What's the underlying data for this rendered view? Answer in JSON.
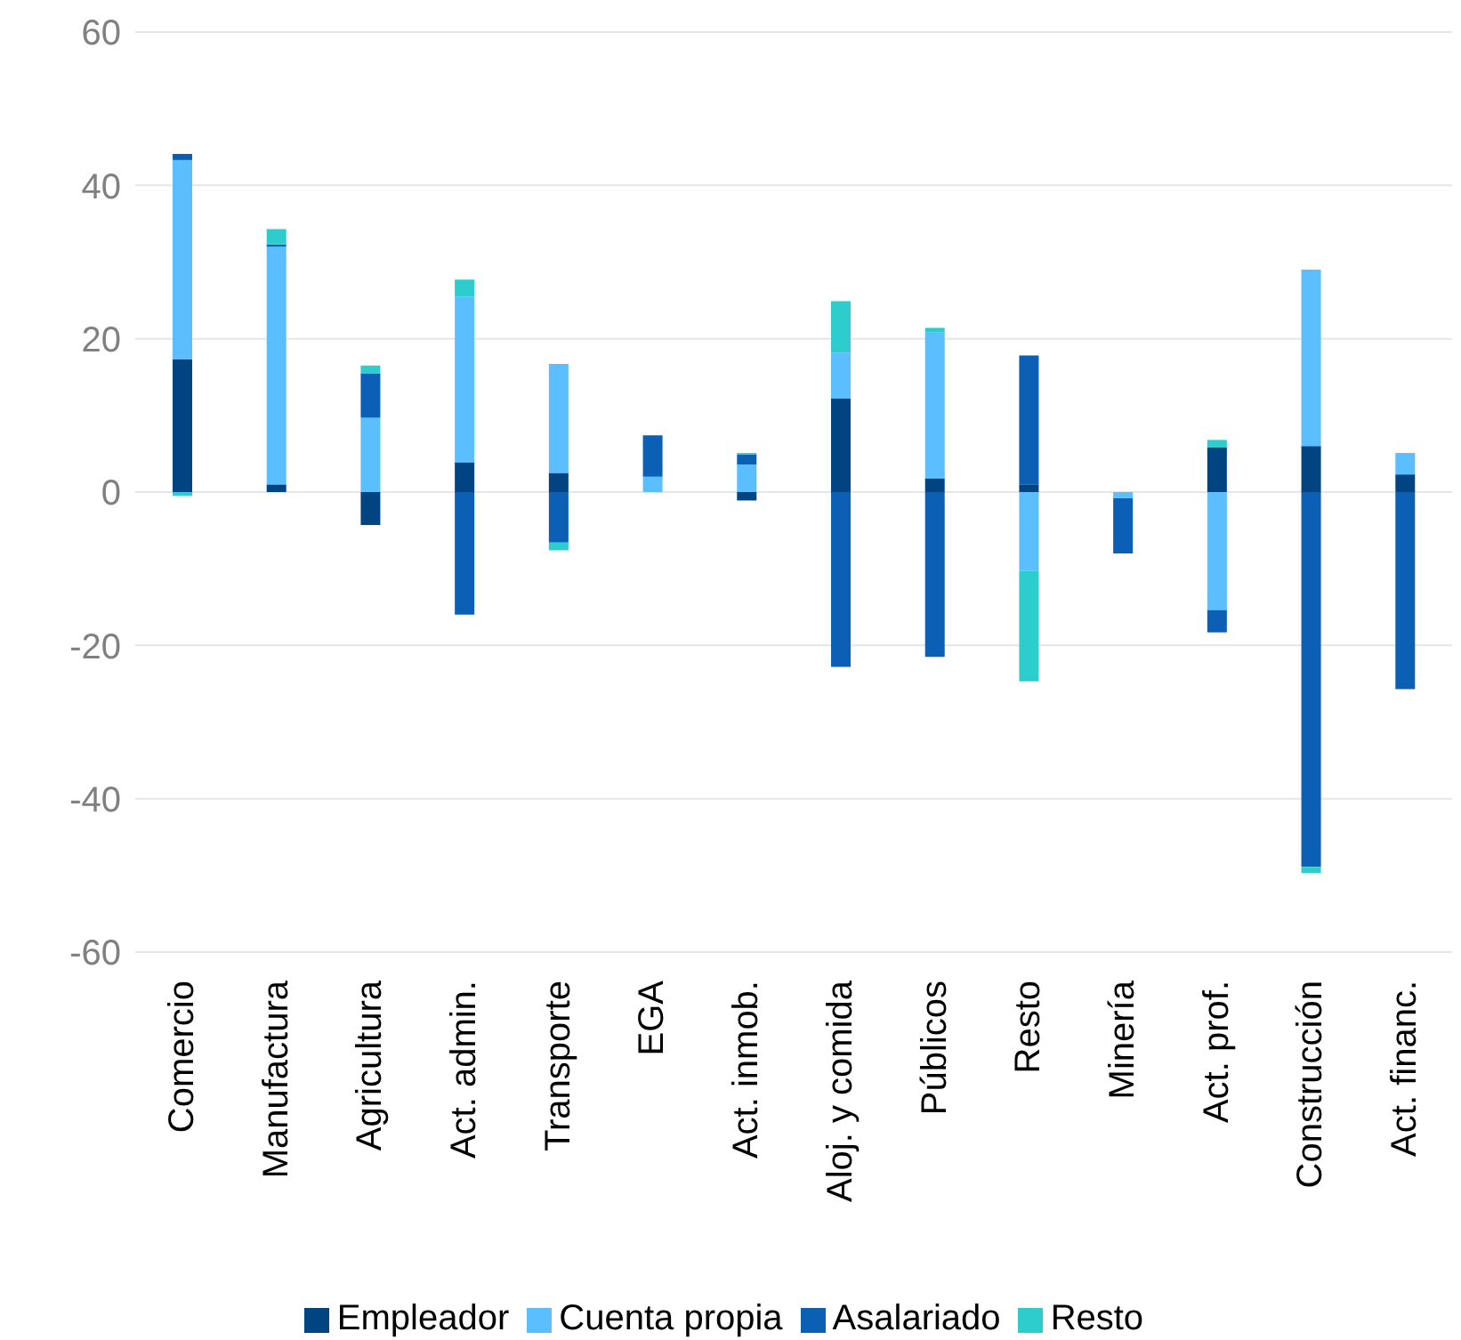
{
  "chart_data": {
    "type": "bar",
    "stacked": true,
    "categories": [
      "Comercio",
      "Manufactura",
      "Agricultura",
      "Act. admin.",
      "Transporte",
      "EGA",
      "Act. inmob.",
      "Aloj. y comida",
      "Públicos",
      "Resto",
      "Minería",
      "Act. prof.",
      "Construcción",
      "Act. financ."
    ],
    "series": [
      {
        "name": "Empleador",
        "color": "#004481",
        "values": [
          17.3,
          1,
          -4.3,
          3.9,
          2.5,
          0,
          -1.1,
          12.2,
          1.8,
          1,
          0,
          5.8,
          6,
          2.3
        ]
      },
      {
        "name": "Cuenta propia",
        "color": "#5bbeff",
        "values": [
          26,
          31,
          9.7,
          21.6,
          14.2,
          2,
          3.6,
          6,
          19,
          -10.3,
          -0.8,
          -15.4,
          23,
          2.8
        ]
      },
      {
        "name": "Asalariado",
        "color": "#0b5fb4",
        "values": [
          0.8,
          0.3,
          5.8,
          -16,
          -6.6,
          5.4,
          1.3,
          -22.8,
          -21.5,
          16.8,
          -7.2,
          -2.9,
          -48.9,
          -25.7
        ]
      },
      {
        "name": "Resto",
        "color": "#2dcccd",
        "values": [
          -0.5,
          2,
          1,
          2.2,
          -1,
          0,
          0.2,
          6.7,
          0.6,
          -14.4,
          0,
          1,
          -0.8,
          0
        ]
      }
    ],
    "ylim": [
      -60,
      60
    ],
    "yticks": [
      -60,
      -40,
      -20,
      0,
      20,
      40,
      60
    ],
    "grid": "y",
    "legend": "bottom"
  }
}
